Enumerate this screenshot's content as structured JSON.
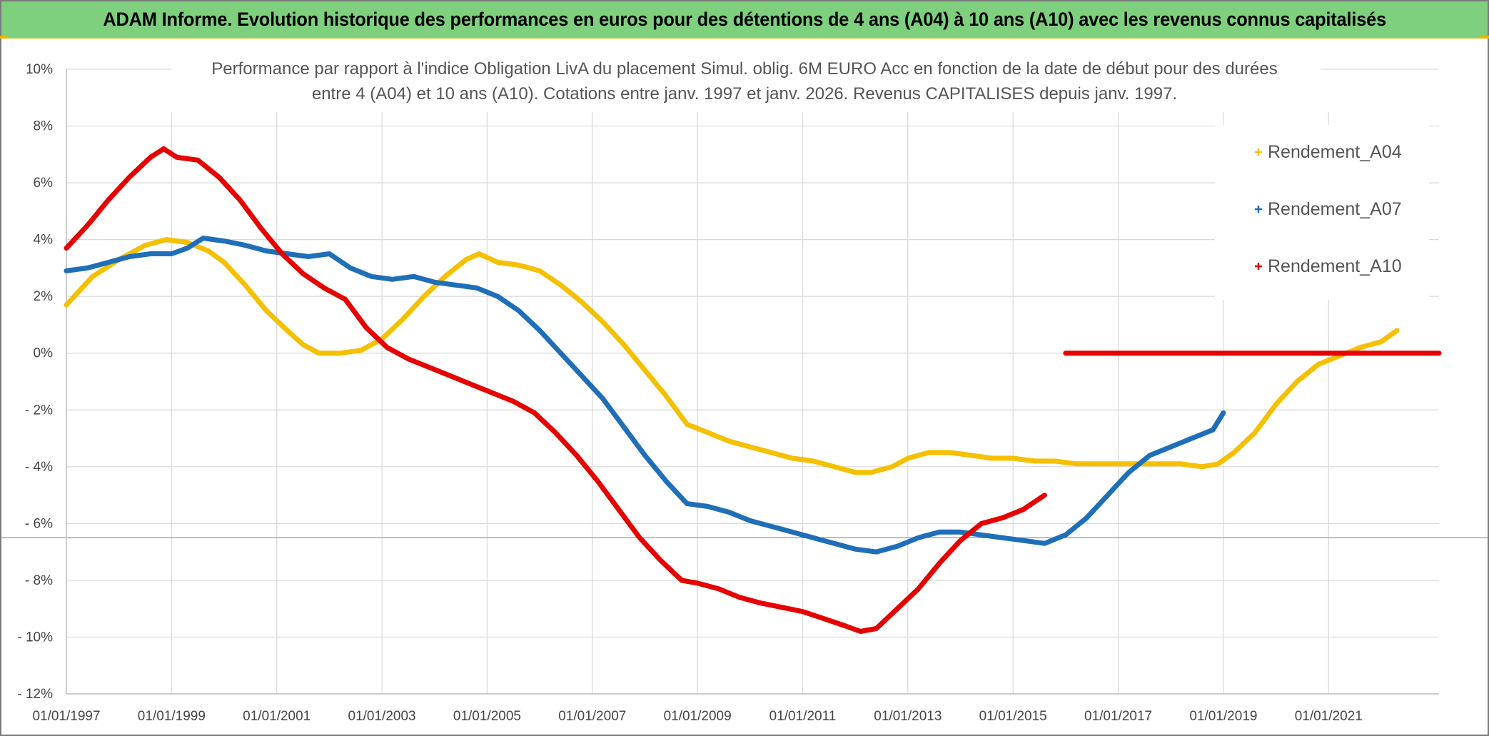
{
  "header": {
    "banner": "ADAM Informe. Evolution historique des performances en euros pour des détentions de 4 ans (A04) à 10 ans (A10) avec les revenus connus capitalisés"
  },
  "chart_data": {
    "type": "line",
    "title_lines": [
      "Performance par rapport à l'indice Obligation LivA  du placement Simul. oblig. 6M EURO Acc en fonction de la date de début pour des durées",
      "entre 4 (A04) et 10 ans (A10). Cotations entre janv. 1997 et janv. 2026. Revenus CAPITALISES depuis janv. 1997."
    ],
    "xlabel": "",
    "ylabel": "",
    "x_range": [
      1997.0,
      2023.1
    ],
    "ylim": [
      -12,
      10
    ],
    "grid": true,
    "legend_position": "top-right",
    "x_tick_labels": [
      "01/01/1997",
      "01/01/1999",
      "01/01/2001",
      "01/01/2003",
      "01/01/2005",
      "01/01/2007",
      "01/01/2009",
      "01/01/2011",
      "01/01/2013",
      "01/01/2015",
      "01/01/2017",
      "01/01/2019",
      "01/01/2021"
    ],
    "x_tick_values": [
      1997,
      1999,
      2001,
      2003,
      2005,
      2007,
      2009,
      2011,
      2013,
      2015,
      2017,
      2019,
      2021
    ],
    "y_ticks": [
      {
        "value": 10,
        "label": "10%"
      },
      {
        "value": 8,
        "label": "8%"
      },
      {
        "value": 6,
        "label": "6%"
      },
      {
        "value": 4,
        "label": "4%"
      },
      {
        "value": 2,
        "label": "2%"
      },
      {
        "value": 0,
        "label": "0%"
      },
      {
        "value": -2,
        "label": "- 2%"
      },
      {
        "value": -4,
        "label": "- 4%"
      },
      {
        "value": -6,
        "label": "- 6%"
      },
      {
        "value": -8,
        "label": "- 8%"
      },
      {
        "value": -10,
        "label": "- 10%"
      },
      {
        "value": -12,
        "label": "- 12%"
      }
    ],
    "reference_line_y": -6.5,
    "series": [
      {
        "name": "Rendement_A04",
        "color": "#f5c000",
        "points": [
          [
            1997.0,
            1.7
          ],
          [
            1997.5,
            2.7
          ],
          [
            1998.0,
            3.3
          ],
          [
            1998.5,
            3.8
          ],
          [
            1998.9,
            4.0
          ],
          [
            1999.3,
            3.9
          ],
          [
            1999.7,
            3.6
          ],
          [
            2000.0,
            3.2
          ],
          [
            2000.4,
            2.4
          ],
          [
            2000.8,
            1.5
          ],
          [
            2001.2,
            0.8
          ],
          [
            2001.5,
            0.3
          ],
          [
            2001.8,
            0.0
          ],
          [
            2002.2,
            0.0
          ],
          [
            2002.6,
            0.1
          ],
          [
            2003.0,
            0.5
          ],
          [
            2003.4,
            1.2
          ],
          [
            2003.8,
            2.0
          ],
          [
            2004.2,
            2.7
          ],
          [
            2004.6,
            3.3
          ],
          [
            2004.85,
            3.5
          ],
          [
            2005.2,
            3.2
          ],
          [
            2005.6,
            3.1
          ],
          [
            2006.0,
            2.9
          ],
          [
            2006.4,
            2.4
          ],
          [
            2006.8,
            1.8
          ],
          [
            2007.2,
            1.1
          ],
          [
            2007.6,
            0.3
          ],
          [
            2008.0,
            -0.6
          ],
          [
            2008.4,
            -1.5
          ],
          [
            2008.8,
            -2.5
          ],
          [
            2009.2,
            -2.8
          ],
          [
            2009.6,
            -3.1
          ],
          [
            2010.0,
            -3.3
          ],
          [
            2010.4,
            -3.5
          ],
          [
            2010.8,
            -3.7
          ],
          [
            2011.2,
            -3.8
          ],
          [
            2011.6,
            -4.0
          ],
          [
            2012.0,
            -4.2
          ],
          [
            2012.3,
            -4.2
          ],
          [
            2012.7,
            -4.0
          ],
          [
            2013.0,
            -3.7
          ],
          [
            2013.4,
            -3.5
          ],
          [
            2013.8,
            -3.5
          ],
          [
            2014.2,
            -3.6
          ],
          [
            2014.6,
            -3.7
          ],
          [
            2015.0,
            -3.7
          ],
          [
            2015.4,
            -3.8
          ],
          [
            2015.8,
            -3.8
          ],
          [
            2016.2,
            -3.9
          ],
          [
            2016.6,
            -3.9
          ],
          [
            2017.0,
            -3.9
          ],
          [
            2017.4,
            -3.9
          ],
          [
            2017.8,
            -3.9
          ],
          [
            2018.2,
            -3.9
          ],
          [
            2018.6,
            -4.0
          ],
          [
            2018.9,
            -3.9
          ],
          [
            2019.2,
            -3.5
          ],
          [
            2019.6,
            -2.8
          ],
          [
            2020.0,
            -1.8
          ],
          [
            2020.4,
            -1.0
          ],
          [
            2020.8,
            -0.4
          ],
          [
            2021.2,
            -0.1
          ],
          [
            2021.6,
            0.2
          ],
          [
            2022.0,
            0.4
          ],
          [
            2022.3,
            0.8
          ]
        ]
      },
      {
        "name": "Rendement_A07",
        "color": "#1f6fb8",
        "points": [
          [
            1997.0,
            2.9
          ],
          [
            1997.4,
            3.0
          ],
          [
            1997.8,
            3.2
          ],
          [
            1998.2,
            3.4
          ],
          [
            1998.6,
            3.5
          ],
          [
            1999.0,
            3.5
          ],
          [
            1999.3,
            3.7
          ],
          [
            1999.6,
            4.05
          ],
          [
            2000.0,
            3.95
          ],
          [
            2000.4,
            3.8
          ],
          [
            2000.8,
            3.6
          ],
          [
            2001.2,
            3.5
          ],
          [
            2001.6,
            3.4
          ],
          [
            2002.0,
            3.5
          ],
          [
            2002.4,
            3.0
          ],
          [
            2002.8,
            2.7
          ],
          [
            2003.2,
            2.6
          ],
          [
            2003.6,
            2.7
          ],
          [
            2004.0,
            2.5
          ],
          [
            2004.4,
            2.4
          ],
          [
            2004.8,
            2.3
          ],
          [
            2005.2,
            2.0
          ],
          [
            2005.6,
            1.5
          ],
          [
            2006.0,
            0.8
          ],
          [
            2006.4,
            0.0
          ],
          [
            2006.8,
            -0.8
          ],
          [
            2007.2,
            -1.6
          ],
          [
            2007.6,
            -2.6
          ],
          [
            2008.0,
            -3.6
          ],
          [
            2008.4,
            -4.5
          ],
          [
            2008.8,
            -5.3
          ],
          [
            2009.2,
            -5.4
          ],
          [
            2009.6,
            -5.6
          ],
          [
            2010.0,
            -5.9
          ],
          [
            2010.4,
            -6.1
          ],
          [
            2010.8,
            -6.3
          ],
          [
            2011.2,
            -6.5
          ],
          [
            2011.6,
            -6.7
          ],
          [
            2012.0,
            -6.9
          ],
          [
            2012.4,
            -7.0
          ],
          [
            2012.8,
            -6.8
          ],
          [
            2013.2,
            -6.5
          ],
          [
            2013.6,
            -6.3
          ],
          [
            2014.0,
            -6.3
          ],
          [
            2014.4,
            -6.4
          ],
          [
            2014.8,
            -6.5
          ],
          [
            2015.2,
            -6.6
          ],
          [
            2015.6,
            -6.7
          ],
          [
            2016.0,
            -6.4
          ],
          [
            2016.4,
            -5.8
          ],
          [
            2016.8,
            -5.0
          ],
          [
            2017.2,
            -4.2
          ],
          [
            2017.6,
            -3.6
          ],
          [
            2018.0,
            -3.3
          ],
          [
            2018.4,
            -3.0
          ],
          [
            2018.8,
            -2.7
          ],
          [
            2019.0,
            -2.1
          ]
        ]
      },
      {
        "name": "Rendement_A10",
        "color": "#e60000",
        "points": [
          [
            1997.0,
            3.7
          ],
          [
            1997.4,
            4.5
          ],
          [
            1997.8,
            5.4
          ],
          [
            1998.2,
            6.2
          ],
          [
            1998.6,
            6.9
          ],
          [
            1998.85,
            7.2
          ],
          [
            1999.1,
            6.9
          ],
          [
            1999.5,
            6.8
          ],
          [
            1999.9,
            6.2
          ],
          [
            2000.3,
            5.4
          ],
          [
            2000.7,
            4.4
          ],
          [
            2001.1,
            3.5
          ],
          [
            2001.5,
            2.8
          ],
          [
            2001.9,
            2.3
          ],
          [
            2002.3,
            1.9
          ],
          [
            2002.7,
            0.9
          ],
          [
            2003.1,
            0.2
          ],
          [
            2003.5,
            -0.2
          ],
          [
            2003.9,
            -0.5
          ],
          [
            2004.3,
            -0.8
          ],
          [
            2004.7,
            -1.1
          ],
          [
            2005.1,
            -1.4
          ],
          [
            2005.5,
            -1.7
          ],
          [
            2005.9,
            -2.1
          ],
          [
            2006.3,
            -2.8
          ],
          [
            2006.7,
            -3.6
          ],
          [
            2007.1,
            -4.5
          ],
          [
            2007.5,
            -5.5
          ],
          [
            2007.9,
            -6.5
          ],
          [
            2008.3,
            -7.3
          ],
          [
            2008.7,
            -8.0
          ],
          [
            2009.0,
            -8.1
          ],
          [
            2009.4,
            -8.3
          ],
          [
            2009.8,
            -8.6
          ],
          [
            2010.2,
            -8.8
          ],
          [
            2010.6,
            -8.95
          ],
          [
            2011.0,
            -9.1
          ],
          [
            2011.4,
            -9.35
          ],
          [
            2011.8,
            -9.6
          ],
          [
            2012.1,
            -9.8
          ],
          [
            2012.4,
            -9.7
          ],
          [
            2012.8,
            -9.0
          ],
          [
            2013.2,
            -8.3
          ],
          [
            2013.6,
            -7.4
          ],
          [
            2014.0,
            -6.6
          ],
          [
            2014.4,
            -6.0
          ],
          [
            2014.8,
            -5.8
          ],
          [
            2015.2,
            -5.5
          ],
          [
            2015.6,
            -5.0
          ]
        ]
      },
      {
        "name": "Rendement_A10 (segment 2)",
        "color": "#e60000",
        "points": [
          [
            2016.0,
            0.0
          ],
          [
            2023.1,
            0.0
          ]
        ]
      }
    ],
    "legend": [
      {
        "label": "Rendement_A04",
        "color": "#f5c000"
      },
      {
        "label": "Rendement_A07",
        "color": "#1f6fb8"
      },
      {
        "label": "Rendement_A10",
        "color": "#e60000"
      }
    ]
  }
}
